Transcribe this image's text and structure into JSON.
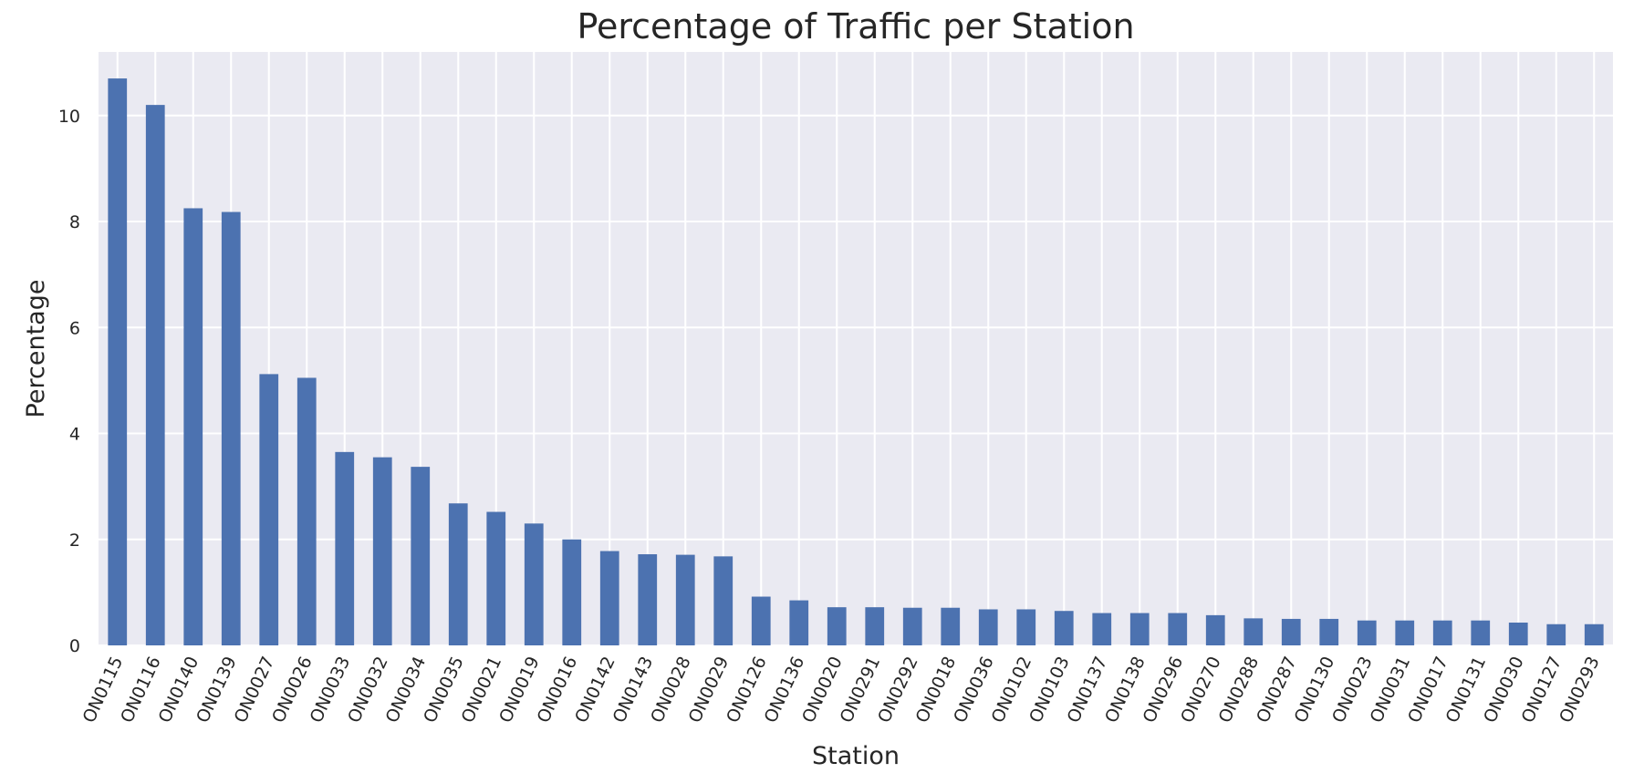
{
  "chart_data": {
    "type": "bar",
    "title": "Percentage of Traffic per Station",
    "xlabel": "Station",
    "ylabel": "Percentage",
    "ylim": [
      0,
      11.2
    ],
    "yticks": [
      0,
      2,
      4,
      6,
      8,
      10
    ],
    "grid": true,
    "legend": "none",
    "colors": {
      "bar": "#4C72B0",
      "background": "#EAEAF2",
      "grid": "#FFFFFF"
    },
    "categories": [
      "ON0115",
      "ON0116",
      "ON0140",
      "ON0139",
      "ON0027",
      "ON0026",
      "ON0033",
      "ON0032",
      "ON0034",
      "ON0035",
      "ON0021",
      "ON0019",
      "ON0016",
      "ON0142",
      "ON0143",
      "ON0028",
      "ON0029",
      "ON0126",
      "ON0136",
      "ON0020",
      "ON0291",
      "ON0292",
      "ON0018",
      "ON0036",
      "ON0102",
      "ON0103",
      "ON0137",
      "ON0138",
      "ON0296",
      "ON0270",
      "ON0288",
      "ON0287",
      "ON0130",
      "ON0023",
      "ON0031",
      "ON0017",
      "ON0131",
      "ON0030",
      "ON0127",
      "ON0293"
    ],
    "values": [
      10.7,
      10.2,
      8.25,
      8.18,
      5.12,
      5.05,
      3.65,
      3.55,
      3.37,
      2.68,
      2.52,
      2.3,
      2.0,
      1.78,
      1.72,
      1.71,
      1.68,
      0.92,
      0.85,
      0.72,
      0.72,
      0.71,
      0.71,
      0.68,
      0.68,
      0.65,
      0.61,
      0.61,
      0.61,
      0.57,
      0.51,
      0.5,
      0.5,
      0.47,
      0.47,
      0.47,
      0.47,
      0.43,
      0.4,
      0.4
    ]
  }
}
